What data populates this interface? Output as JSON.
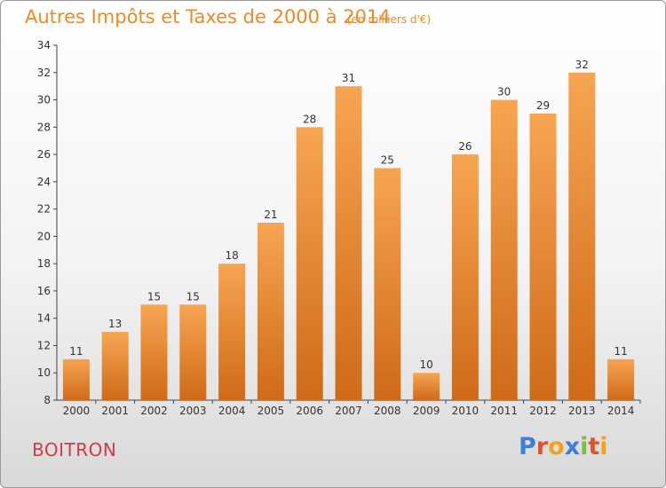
{
  "header": {
    "title": "Autres Impôts et Taxes de 2000 à 2014",
    "subtitle": "(en milliers d'€)"
  },
  "footer": {
    "commune": "BOITRON",
    "logo_text": "Proxiti",
    "logo_letters": [
      {
        "ch": "P",
        "color": "#3d7fd6"
      },
      {
        "ch": "r",
        "color": "#e0542c"
      },
      {
        "ch": "o",
        "color": "#f2a21e"
      },
      {
        "ch": "x",
        "color": "#3d7fd6"
      },
      {
        "ch": "i",
        "color": "#7bbf3a"
      },
      {
        "ch": "t",
        "color": "#e0542c"
      },
      {
        "ch": "i",
        "color": "#f2a21e"
      }
    ]
  },
  "colors": {
    "title": "#f08a1e",
    "commune": "#d4394a",
    "bar_light": "#f7a552",
    "bar_dark": "#cf6a18"
  },
  "chart_data": {
    "type": "bar",
    "title": "Autres Impôts et Taxes de 2000 à 2014",
    "subtitle": "(en milliers d'€)",
    "categories": [
      "2000",
      "2001",
      "2002",
      "2003",
      "2004",
      "2005",
      "2006",
      "2007",
      "2008",
      "2009",
      "2010",
      "2011",
      "2012",
      "2013",
      "2014"
    ],
    "values": [
      11,
      13,
      15,
      15,
      18,
      21,
      28,
      31,
      25,
      10,
      26,
      30,
      29,
      32,
      11
    ],
    "ylim": [
      8,
      34
    ],
    "yticks": [
      8,
      10,
      12,
      14,
      16,
      18,
      20,
      22,
      24,
      26,
      28,
      30,
      32,
      34
    ],
    "grid": false,
    "data_labels": true
  }
}
